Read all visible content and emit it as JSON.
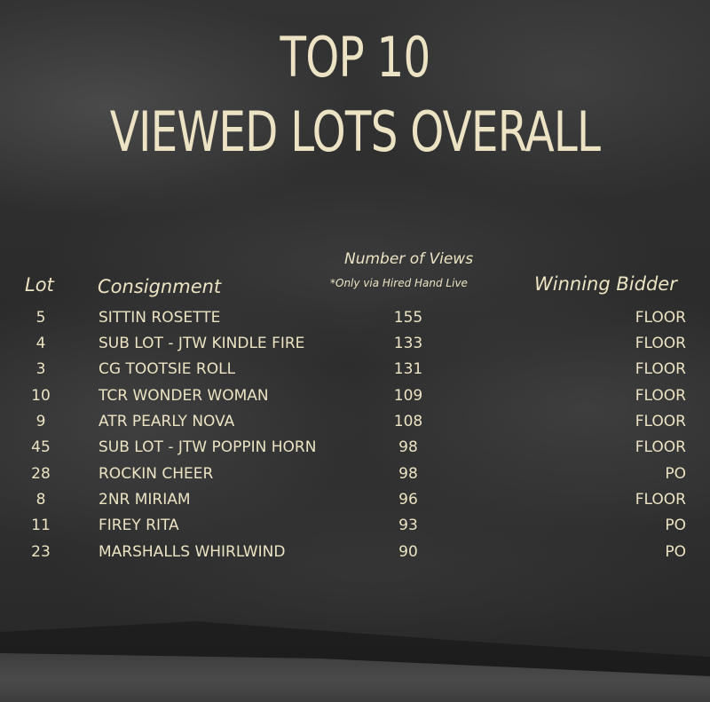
{
  "title": {
    "line1": "TOP 10",
    "line2": "VIEWED LOTS OVERALL"
  },
  "headers": {
    "lot": "Lot",
    "consignment": "Consignment",
    "views": "Number of Views",
    "views_note": "*Only via Hired Hand Live",
    "winning_bidder": "Winning Bidder"
  },
  "rows": [
    {
      "lot": "5",
      "consignment": "SITTIN ROSETTE",
      "views": "155",
      "winner": "FLOOR"
    },
    {
      "lot": "4",
      "consignment": "SUB LOT - JTW KINDLE FIRE",
      "views": "133",
      "winner": "FLOOR"
    },
    {
      "lot": "3",
      "consignment": "CG TOOTSIE ROLL",
      "views": "131",
      "winner": "FLOOR"
    },
    {
      "lot": "10",
      "consignment": "TCR WONDER WOMAN",
      "views": "109",
      "winner": "FLOOR"
    },
    {
      "lot": "9",
      "consignment": "ATR PEARLY NOVA",
      "views": "108",
      "winner": "FLOOR"
    },
    {
      "lot": "45",
      "consignment": "SUB LOT - JTW POPPIN HORN",
      "views": "98",
      "winner": "FLOOR"
    },
    {
      "lot": "28",
      "consignment": "ROCKIN CHEER",
      "views": "98",
      "winner": "PO"
    },
    {
      "lot": "8",
      "consignment": "2NR MIRIAM",
      "views": "96",
      "winner": "FLOOR"
    },
    {
      "lot": "11",
      "consignment": "FIREY RITA",
      "views": "93",
      "winner": "PO"
    },
    {
      "lot": "23",
      "consignment": "MARSHALLS WHIRLWIND",
      "views": "90",
      "winner": "PO"
    }
  ],
  "colors": {
    "text": "#ece3c4",
    "sky": "#2f2f2f"
  }
}
